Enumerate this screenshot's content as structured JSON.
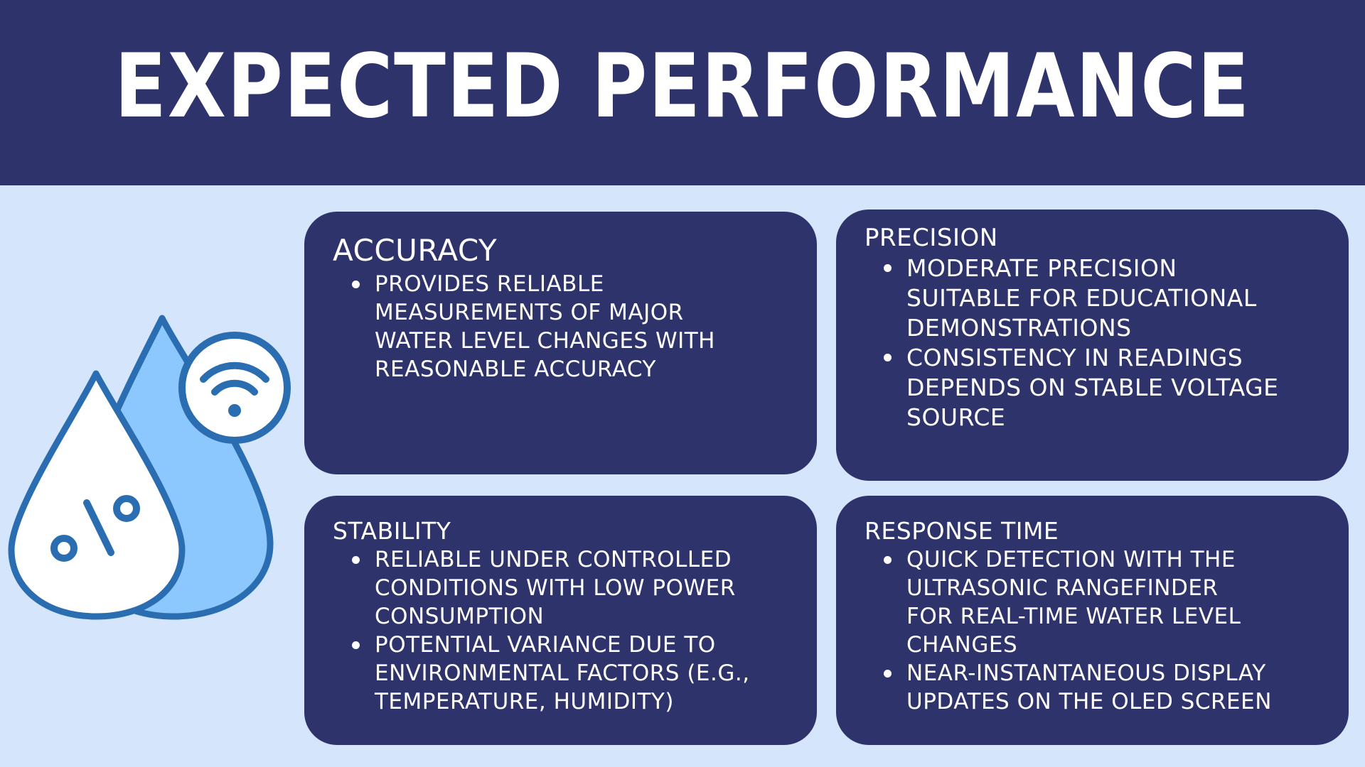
{
  "header": {
    "title": "EXPECTED PERFORMANCE"
  },
  "illustration": {
    "icon": "water-drops-with-wifi-and-percent-icon",
    "colors": {
      "outline": "#2a6db1",
      "light_drop": "#8cc8fd",
      "white": "#ffffff"
    }
  },
  "cards": {
    "accuracy": {
      "title": "ACCURACY",
      "items": [
        "PROVIDES RELIABLE\nMEASUREMENTS OF MAJOR\nWATER LEVEL CHANGES WITH\nREASONABLE ACCURACY"
      ]
    },
    "precision": {
      "title": "PRECISION",
      "items": [
        "MODERATE PRECISION\nSUITABLE FOR EDUCATIONAL\nDEMONSTRATIONS",
        "CONSISTENCY IN READINGS\nDEPENDS ON STABLE VOLTAGE\nSOURCE"
      ]
    },
    "stability": {
      "title": "STABILITY",
      "items": [
        "RELIABLE UNDER CONTROLLED\nCONDITIONS WITH LOW POWER\nCONSUMPTION",
        "POTENTIAL VARIANCE DUE TO\nENVIRONMENTAL FACTORS (E.G.,\nTEMPERATURE, HUMIDITY)"
      ]
    },
    "response_time": {
      "title": "RESPONSE TIME",
      "items": [
        "QUICK DETECTION WITH THE\nULTRASONIC RANGEFINDER\nFOR REAL-TIME WATER LEVEL\nCHANGES",
        "NEAR-INSTANTANEOUS DISPLAY\nUPDATES ON THE OLED SCREEN"
      ]
    }
  },
  "colors": {
    "background": "#d5e6fc",
    "header_and_cards": "#2f336b",
    "text": "#ffffff"
  }
}
